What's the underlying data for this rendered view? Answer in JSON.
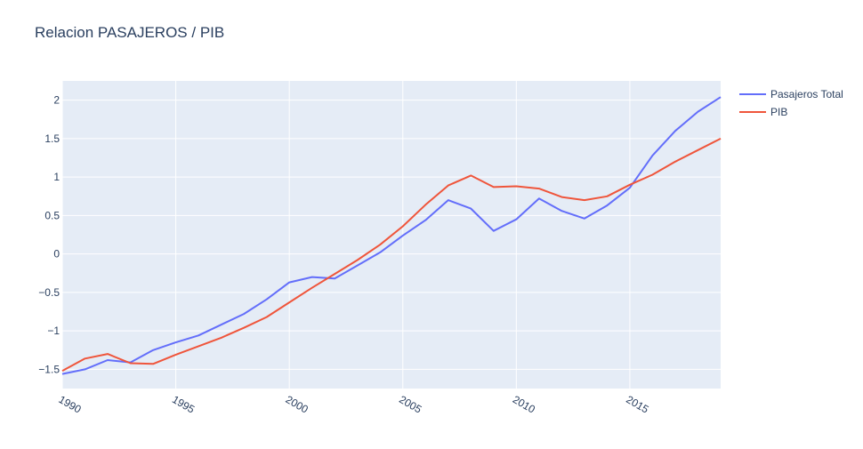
{
  "chart_data": {
    "type": "line",
    "title": "Relacion PASAJEROS / PIB",
    "xlabel": "",
    "ylabel": "",
    "x": [
      1990,
      1991,
      1992,
      1993,
      1994,
      1995,
      1996,
      1997,
      1998,
      1999,
      2000,
      2001,
      2002,
      2003,
      2004,
      2005,
      2006,
      2007,
      2008,
      2009,
      2010,
      2011,
      2012,
      2013,
      2014,
      2015,
      2016,
      2017,
      2018,
      2019
    ],
    "series": [
      {
        "name": "Pasajeros Total",
        "color": "#636efa",
        "values": [
          -1.56,
          -1.5,
          -1.38,
          -1.41,
          -1.25,
          -1.15,
          -1.06,
          -0.92,
          -0.78,
          -0.59,
          -0.37,
          -0.3,
          -0.32,
          -0.15,
          0.02,
          0.24,
          0.44,
          0.7,
          0.59,
          0.3,
          0.45,
          0.72,
          0.56,
          0.46,
          0.63,
          0.86,
          1.28,
          1.6,
          1.85,
          2.04
        ]
      },
      {
        "name": "PIB",
        "color": "#ef553b",
        "values": [
          -1.52,
          -1.36,
          -1.3,
          -1.42,
          -1.43,
          -1.31,
          -1.2,
          -1.09,
          -0.96,
          -0.82,
          -0.63,
          -0.44,
          -0.26,
          -0.08,
          0.12,
          0.36,
          0.64,
          0.89,
          1.02,
          0.87,
          0.88,
          0.85,
          0.74,
          0.7,
          0.75,
          0.9,
          1.03,
          1.2,
          1.35,
          1.5
        ]
      }
    ],
    "xlim": [
      1990,
      2019
    ],
    "ylim": [
      -1.75,
      2.25
    ],
    "xticks": [
      1990,
      1995,
      2000,
      2005,
      2010,
      2015
    ],
    "xtick_labels": [
      "1990",
      "1995",
      "2000",
      "2005",
      "2010",
      "2015"
    ],
    "yticks": [
      -1.5,
      -1,
      -0.5,
      0,
      0.5,
      1,
      1.5,
      2
    ],
    "ytick_labels": [
      "−1.5",
      "−1",
      "−0.5",
      "0",
      "0.5",
      "1",
      "1.5",
      "2"
    ],
    "grid": true,
    "legend_position": "top-right",
    "plot_background": "#e5ecf6"
  }
}
